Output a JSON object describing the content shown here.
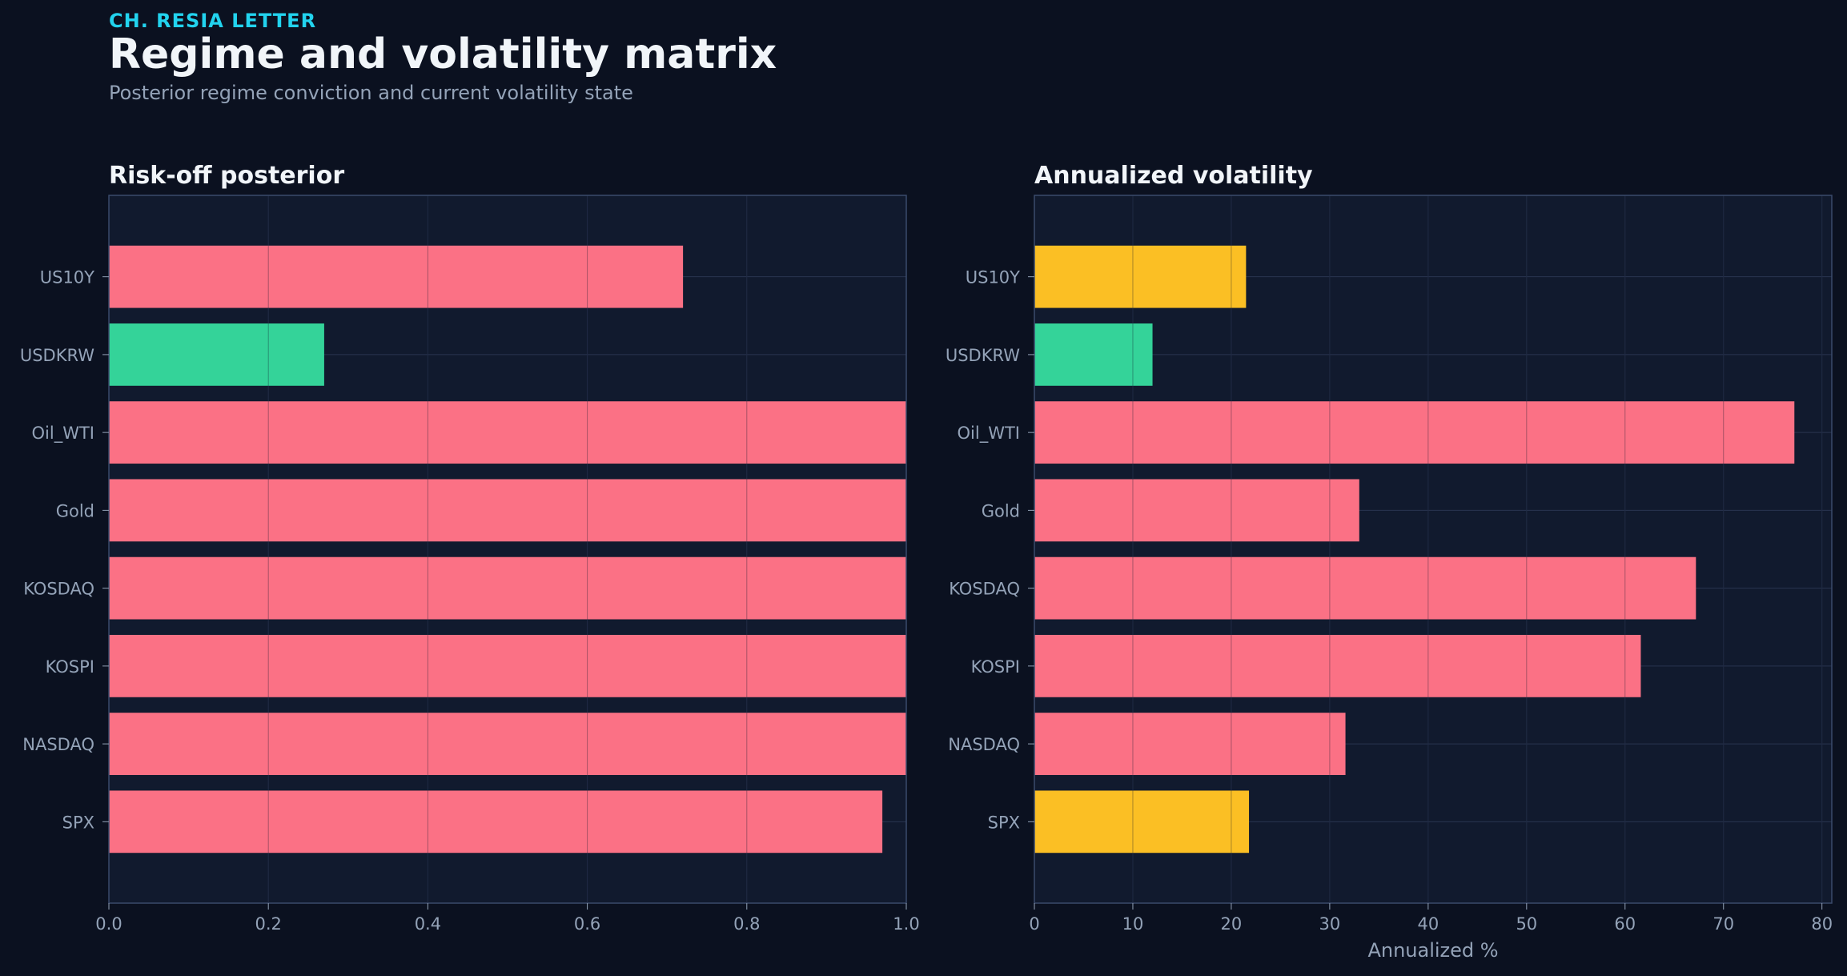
{
  "header": {
    "kicker": "CH. RESIA LETTER",
    "title": "Regime and volatility matrix",
    "subtitle": "Posterior regime conviction and current volatility state"
  },
  "colors": {
    "background": "#0b1120",
    "panel": "#111a2e",
    "risk": "#fb7185",
    "calm": "#34d399",
    "neutral": "#fbbf24",
    "axis_text": "#94a3b8",
    "grid": "#2a3550",
    "border": "#3b4a6b"
  },
  "chart_data": [
    {
      "type": "bar",
      "orientation": "horizontal",
      "title": "Risk-off posterior",
      "xlabel": "",
      "ylabel": "",
      "categories": [
        "US10Y",
        "USDKRW",
        "Oil_WTI",
        "Gold",
        "KOSDAQ",
        "KOSPI",
        "NASDAQ",
        "SPX"
      ],
      "values": [
        0.72,
        0.27,
        1.0,
        1.0,
        1.0,
        1.0,
        1.0,
        0.97
      ],
      "bar_colors": [
        "risk",
        "calm",
        "risk",
        "risk",
        "risk",
        "risk",
        "risk",
        "risk"
      ],
      "xlim": [
        0.0,
        1.0
      ],
      "xticks": [
        0.0,
        0.2,
        0.4,
        0.6,
        0.8,
        1.0
      ],
      "xtick_labels": [
        "0.0",
        "0.2",
        "0.4",
        "0.6",
        "0.8",
        "1.0"
      ],
      "grid": true
    },
    {
      "type": "bar",
      "orientation": "horizontal",
      "title": "Annualized volatility",
      "xlabel": "Annualized %",
      "ylabel": "",
      "categories": [
        "US10Y",
        "USDKRW",
        "Oil_WTI",
        "Gold",
        "KOSDAQ",
        "KOSPI",
        "NASDAQ",
        "SPX"
      ],
      "values": [
        21.5,
        12.0,
        77.2,
        33.0,
        67.2,
        61.6,
        31.6,
        21.8
      ],
      "bar_colors": [
        "neutral",
        "calm",
        "risk",
        "risk",
        "risk",
        "risk",
        "risk",
        "neutral"
      ],
      "xlim": [
        0,
        81
      ],
      "xticks": [
        0,
        10,
        20,
        30,
        40,
        50,
        60,
        70,
        80
      ],
      "xtick_labels": [
        "0",
        "10",
        "20",
        "30",
        "40",
        "50",
        "60",
        "70",
        "80"
      ],
      "grid": true
    }
  ]
}
